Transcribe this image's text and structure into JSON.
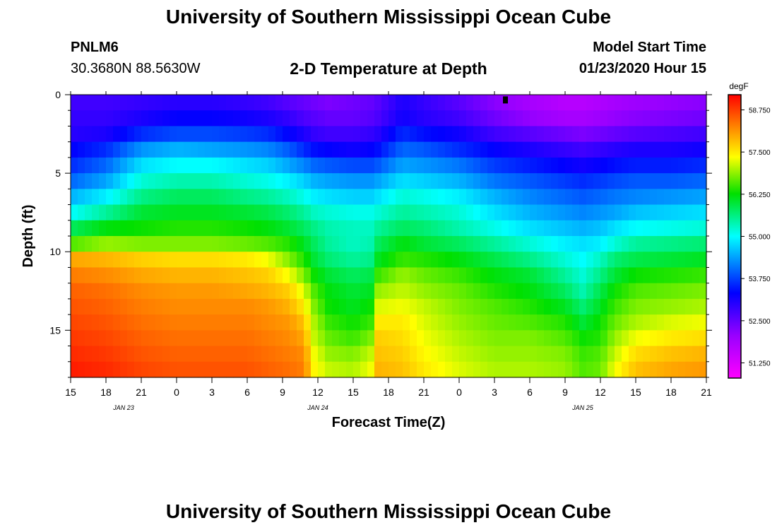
{
  "header": {
    "title": "University of Southern Mississippi Ocean Cube",
    "station_id": "PNLM6",
    "station_coords": "30.3680N 88.5630W",
    "plot_title": "2-D Temperature at Depth",
    "model_start_label": "Model Start Time",
    "model_start_value": "01/23/2020 Hour 15"
  },
  "footer": {
    "title": "University of Southern Mississippi Ocean Cube"
  },
  "chart_data": {
    "type": "heatmap",
    "title": "2-D Temperature at Depth",
    "xlabel": "Forecast Time(Z)",
    "ylabel": "Depth (ft)",
    "x_tick_labels": [
      "15",
      "18",
      "21",
      "0",
      "3",
      "6",
      "9",
      "12",
      "15",
      "18",
      "21",
      "0",
      "3",
      "6",
      "9",
      "12",
      "15",
      "18",
      "21"
    ],
    "date_labels": [
      {
        "label": "JAN 23",
        "tick_index": 1.5
      },
      {
        "label": "JAN 24",
        "tick_index": 7
      },
      {
        "label": "JAN 25",
        "tick_index": 14.5
      }
    ],
    "y_ticks": [
      0,
      5,
      10,
      15
    ],
    "ylim": [
      0,
      18
    ],
    "depth_rows": [
      0.5,
      1.5,
      2.5,
      3.5,
      4.5,
      5.5,
      6.5,
      7.5,
      8.5,
      9.5,
      10.5,
      11.5,
      12.5,
      13.5,
      14.5,
      15.5,
      16.5,
      17.5
    ],
    "colorbar": {
      "unit": "degF",
      "min": 50.8,
      "max": 59.2,
      "tick_values": [
        51.25,
        52.5,
        53.75,
        55.0,
        56.25,
        57.5,
        58.75
      ],
      "tick_labels": [
        "51.250",
        "52.500",
        "53.750",
        "55.000",
        "56.250",
        "57.500",
        "58.750"
      ]
    },
    "marker": {
      "tick_index": 12.3,
      "depth": 0.2
    },
    "keyframes": [
      {
        "t": 0,
        "values": [
          52.8,
          52.9,
          53.0,
          53.3,
          53.6,
          54.0,
          54.5,
          55.0,
          55.8,
          56.6,
          58.0,
          58.3,
          58.5,
          58.6,
          58.7,
          58.8,
          58.9,
          59.0
        ]
      },
      {
        "t": 1,
        "values": [
          52.8,
          52.9,
          53.1,
          53.6,
          54.0,
          54.4,
          54.9,
          55.5,
          56.2,
          56.9,
          57.9,
          58.2,
          58.4,
          58.5,
          58.6,
          58.7,
          58.8,
          58.9
        ]
      },
      {
        "t": 2,
        "values": [
          52.9,
          53.1,
          53.6,
          54.3,
          54.8,
          55.2,
          55.6,
          56.0,
          56.3,
          56.8,
          57.7,
          58.0,
          58.2,
          58.3,
          58.4,
          58.5,
          58.6,
          58.7
        ]
      },
      {
        "t": 3,
        "values": [
          53.0,
          53.3,
          53.8,
          54.5,
          55.0,
          55.4,
          55.8,
          56.1,
          56.4,
          56.8,
          57.6,
          57.9,
          58.1,
          58.2,
          58.3,
          58.4,
          58.5,
          58.6
        ]
      },
      {
        "t": 4,
        "values": [
          53.0,
          53.3,
          53.8,
          54.4,
          55.0,
          55.4,
          55.8,
          56.1,
          56.4,
          56.8,
          57.6,
          57.9,
          58.1,
          58.2,
          58.3,
          58.4,
          58.5,
          58.6
        ]
      },
      {
        "t": 5,
        "values": [
          52.9,
          53.2,
          53.7,
          54.3,
          54.8,
          55.2,
          55.6,
          56.0,
          56.3,
          56.7,
          57.5,
          57.8,
          58.0,
          58.2,
          58.3,
          58.4,
          58.5,
          58.6
        ]
      },
      {
        "t": 5.6,
        "values": [
          52.8,
          53.1,
          53.6,
          54.2,
          54.7,
          55.1,
          55.5,
          55.9,
          56.2,
          56.6,
          57.3,
          57.7,
          57.9,
          58.1,
          58.2,
          58.3,
          58.4,
          58.5
        ]
      },
      {
        "t": 6.2,
        "values": [
          52.6,
          52.9,
          53.3,
          53.9,
          54.4,
          54.9,
          55.3,
          55.7,
          56.0,
          56.4,
          56.8,
          57.3,
          57.7,
          57.9,
          58.1,
          58.2,
          58.3,
          58.4
        ]
      },
      {
        "t": 6.6,
        "values": [
          52.5,
          52.7,
          53.1,
          53.6,
          54.2,
          54.7,
          55.1,
          55.5,
          55.8,
          56.1,
          56.4,
          56.8,
          57.2,
          57.5,
          57.8,
          58.0,
          58.2,
          58.3
        ]
      },
      {
        "t": 6.9,
        "values": [
          52.4,
          52.6,
          52.9,
          53.4,
          54.0,
          54.5,
          54.9,
          55.3,
          55.6,
          55.8,
          56.0,
          56.3,
          56.6,
          56.8,
          57.0,
          57.1,
          57.3,
          57.4
        ]
      },
      {
        "t": 7.3,
        "values": [
          52.3,
          52.5,
          52.8,
          53.3,
          53.9,
          54.4,
          54.8,
          55.2,
          55.4,
          55.5,
          55.7,
          56.0,
          56.2,
          56.3,
          56.5,
          56.7,
          56.9,
          57.1
        ]
      },
      {
        "t": 8.0,
        "values": [
          52.4,
          52.5,
          52.8,
          53.2,
          53.8,
          54.3,
          54.7,
          55.1,
          55.3,
          55.3,
          55.5,
          55.8,
          56.0,
          56.1,
          56.3,
          56.5,
          56.8,
          57.0
        ]
      },
      {
        "t": 8.5,
        "values": [
          52.5,
          52.6,
          52.9,
          53.3,
          53.8,
          54.3,
          54.7,
          55.1,
          55.3,
          55.4,
          55.6,
          55.9,
          56.1,
          56.3,
          56.5,
          56.8,
          57.1,
          57.3
        ]
      },
      {
        "t": 8.7,
        "values": [
          52.6,
          52.7,
          53.0,
          53.4,
          53.9,
          54.4,
          54.8,
          55.2,
          55.5,
          55.8,
          56.1,
          56.5,
          56.9,
          57.2,
          57.5,
          57.7,
          57.8,
          57.9
        ]
      },
      {
        "t": 9.4,
        "values": [
          53.1,
          53.2,
          53.6,
          54.0,
          54.4,
          54.8,
          55.2,
          55.5,
          55.8,
          56.2,
          56.5,
          56.9,
          57.1,
          57.3,
          57.5,
          57.6,
          57.7,
          57.8
        ]
      },
      {
        "t": 10.0,
        "values": [
          52.9,
          53.0,
          53.4,
          53.9,
          54.3,
          54.7,
          55.1,
          55.4,
          55.7,
          56.0,
          56.4,
          56.7,
          56.9,
          57.1,
          57.2,
          57.3,
          57.4,
          57.5
        ]
      },
      {
        "t": 11.0,
        "values": [
          52.6,
          52.8,
          53.2,
          53.6,
          54.1,
          54.5,
          54.9,
          55.2,
          55.4,
          55.8,
          56.2,
          56.5,
          56.7,
          56.8,
          56.9,
          57.0,
          57.1,
          57.2
        ]
      },
      {
        "t": 12.0,
        "values": [
          52.2,
          52.4,
          52.8,
          53.3,
          53.7,
          54.1,
          54.5,
          54.8,
          55.1,
          55.5,
          55.9,
          56.2,
          56.4,
          56.6,
          56.7,
          56.8,
          56.9,
          57.0
        ]
      },
      {
        "t": 13.0,
        "values": [
          51.9,
          52.1,
          52.6,
          53.1,
          53.5,
          53.9,
          54.2,
          54.5,
          54.8,
          55.2,
          55.6,
          56.0,
          56.2,
          56.4,
          56.6,
          56.8,
          56.9,
          57.0
        ]
      },
      {
        "t": 14.0,
        "values": [
          51.7,
          51.9,
          52.4,
          52.9,
          53.3,
          53.7,
          54.0,
          54.3,
          54.6,
          54.9,
          55.2,
          55.5,
          55.8,
          56.1,
          56.4,
          56.6,
          56.8,
          56.9
        ]
      },
      {
        "t": 14.5,
        "values": [
          51.7,
          51.9,
          52.3,
          52.8,
          53.2,
          53.6,
          53.9,
          54.2,
          54.5,
          54.8,
          55.0,
          55.2,
          55.4,
          55.7,
          56.0,
          56.3,
          56.5,
          56.6
        ]
      },
      {
        "t": 15.0,
        "values": [
          51.8,
          52.0,
          52.4,
          52.9,
          53.3,
          53.7,
          54.0,
          54.3,
          54.6,
          54.9,
          55.3,
          55.6,
          55.9,
          56.1,
          56.3,
          56.4,
          56.6,
          56.7
        ]
      },
      {
        "t": 15.4,
        "values": [
          51.9,
          52.1,
          52.5,
          53.0,
          53.4,
          53.8,
          54.1,
          54.4,
          54.8,
          55.2,
          55.7,
          56.0,
          56.3,
          56.5,
          56.7,
          56.9,
          57.1,
          57.3
        ]
      },
      {
        "t": 16.0,
        "values": [
          52.0,
          52.2,
          52.6,
          53.1,
          53.5,
          53.9,
          54.2,
          54.6,
          55.0,
          55.5,
          55.9,
          56.3,
          56.6,
          56.8,
          57.0,
          57.3,
          57.6,
          57.8
        ]
      },
      {
        "t": 17.0,
        "values": [
          52.1,
          52.3,
          52.7,
          53.1,
          53.5,
          53.9,
          54.3,
          54.7,
          55.1,
          55.6,
          56.0,
          56.4,
          56.7,
          56.9,
          57.2,
          57.5,
          57.8,
          58.0
        ]
      },
      {
        "t": 18.0,
        "values": [
          52.2,
          52.4,
          52.8,
          53.2,
          53.6,
          54.0,
          54.4,
          54.8,
          55.2,
          55.7,
          56.1,
          56.5,
          56.8,
          57.0,
          57.3,
          57.6,
          57.9,
          58.1
        ]
      }
    ]
  }
}
